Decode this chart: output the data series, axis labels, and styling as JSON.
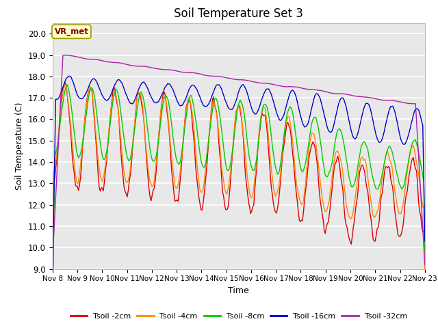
{
  "title": "Soil Temperature Set 3",
  "xlabel": "Time",
  "ylabel": "Soil Temperature (C)",
  "ylim": [
    9.0,
    20.5
  ],
  "yticks": [
    9.0,
    10.0,
    11.0,
    12.0,
    13.0,
    14.0,
    15.0,
    16.0,
    17.0,
    18.0,
    19.0,
    20.0
  ],
  "xtick_labels": [
    "Nov 8",
    "Nov 9",
    "Nov 10",
    "Nov 11",
    "Nov 12",
    "Nov 13",
    "Nov 14",
    "Nov 15",
    "Nov 16",
    "Nov 17",
    "Nov 18",
    "Nov 19",
    "Nov 20",
    "Nov 21",
    "Nov 22",
    "Nov 23"
  ],
  "colors": {
    "Tsoil_2cm": "#dd0000",
    "Tsoil_4cm": "#ff8800",
    "Tsoil_8cm": "#00cc00",
    "Tsoil_16cm": "#0000cc",
    "Tsoil_32cm": "#aa22aa"
  },
  "legend_labels": [
    "Tsoil -2cm",
    "Tsoil -4cm",
    "Tsoil -8cm",
    "Tsoil -16cm",
    "Tsoil -32cm"
  ],
  "vr_met_box_facecolor": "#ffffcc",
  "vr_met_box_edgecolor": "#999900",
  "vr_met_text_color": "#880000",
  "plot_bg_color": "#e8e8e8",
  "grid_color": "#ffffff",
  "title_fontsize": 12
}
